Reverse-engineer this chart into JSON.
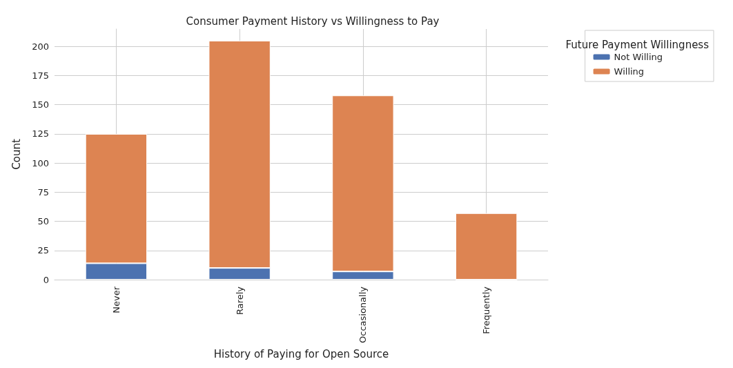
{
  "chart_data": {
    "type": "bar",
    "title": "Consumer Payment History vs Willingness to Pay",
    "xlabel": "History of Paying for Open Source",
    "ylabel": "Count",
    "legend_title": "Future Payment Willingness",
    "categories": [
      "Never",
      "Rarely",
      "Occasionally",
      "Frequently"
    ],
    "series": [
      {
        "name": "Not Willing",
        "color": "#4c72b0",
        "values": [
          14,
          10,
          7,
          0
        ]
      },
      {
        "name": "Willing",
        "color": "#dd8452",
        "values": [
          111,
          195,
          151,
          57
        ]
      }
    ],
    "stacked": true,
    "ylim": [
      0,
      215
    ],
    "yticks": [
      0,
      25,
      50,
      75,
      100,
      125,
      150,
      175,
      200
    ],
    "grid": true,
    "legend": "top right"
  }
}
